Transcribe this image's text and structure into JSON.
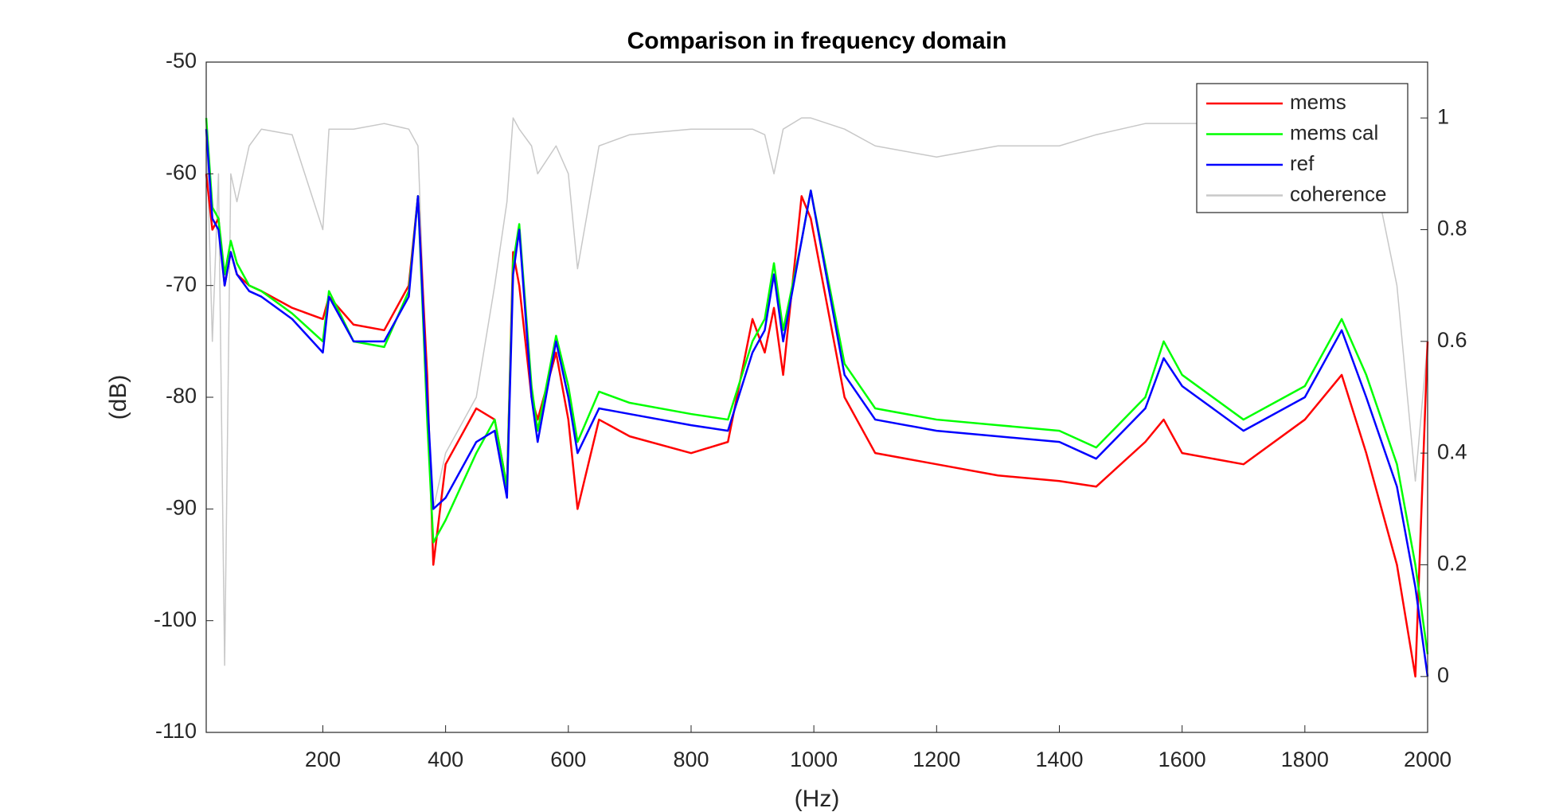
{
  "chart_data": {
    "type": "line",
    "title": "Comparison in frequency domain",
    "x_label": "(Hz)",
    "y_label": "(dB)",
    "x": [
      10,
      20,
      30,
      40,
      50,
      60,
      80,
      100,
      150,
      200,
      210,
      250,
      300,
      340,
      355,
      370,
      380,
      400,
      450,
      480,
      500,
      510,
      520,
      540,
      550,
      580,
      600,
      615,
      650,
      700,
      800,
      860,
      900,
      920,
      935,
      950,
      980,
      995,
      1050,
      1100,
      1200,
      1300,
      1400,
      1460,
      1540,
      1570,
      1600,
      1700,
      1800,
      1860,
      1900,
      1950,
      1980,
      2000
    ],
    "xlim": [
      10,
      2000
    ],
    "xticks": [
      200,
      400,
      600,
      800,
      1000,
      1200,
      1400,
      1600,
      1800,
      2000
    ],
    "ylim": [
      -110,
      -50
    ],
    "yticks": [
      -110,
      -100,
      -90,
      -80,
      -70,
      -60,
      -50
    ],
    "y2lim": [
      -0.1,
      1.1
    ],
    "y2ticks": [
      0,
      0.2,
      0.4,
      0.6,
      0.8,
      1
    ],
    "legend_position": "upper right",
    "series": [
      {
        "name": "mems",
        "color": "#ff0000",
        "values": [
          -60,
          -65,
          -64,
          -70,
          -67,
          -69,
          -70,
          -70.5,
          -72,
          -73,
          -71,
          -73.5,
          -74,
          -70,
          -62,
          -78,
          -95,
          -86,
          -81,
          -82,
          -88,
          -67,
          -70,
          -80,
          -82,
          -76,
          -82,
          -90,
          -82,
          -83.5,
          -85,
          -84,
          -73,
          -76,
          -72,
          -78,
          -62,
          -64,
          -80,
          -85,
          -86,
          -87,
          -87.5,
          -88,
          -84,
          -82,
          -85,
          -86,
          -82,
          -78,
          -85,
          -95,
          -105,
          -75
        ]
      },
      {
        "name": "mems cal",
        "color": "#00ff00",
        "values": [
          -55,
          -63,
          -64,
          -69,
          -66,
          -68,
          -70,
          -70.5,
          -72.5,
          -75,
          -70.5,
          -75,
          -75.5,
          -70.5,
          -62,
          -82,
          -93,
          -91,
          -85,
          -82,
          -88,
          -68,
          -64.5,
          -79,
          -83,
          -74.5,
          -79,
          -84,
          -79.5,
          -80.5,
          -81.5,
          -82,
          -75,
          -73,
          -68,
          -74,
          -66,
          -61.5,
          -77,
          -81,
          -82,
          -82.5,
          -83,
          -84.5,
          -80,
          -75,
          -78,
          -82,
          -79,
          -73,
          -78,
          -86,
          -95,
          -103
        ]
      },
      {
        "name": "ref",
        "color": "#0000ff",
        "values": [
          -56,
          -64,
          -65,
          -70,
          -67,
          -69,
          -70.5,
          -71,
          -73,
          -76,
          -71,
          -75,
          -75,
          -71,
          -62,
          -80,
          -90,
          -89,
          -84,
          -83,
          -89,
          -69,
          -65,
          -80,
          -84,
          -75,
          -80,
          -85,
          -81,
          -81.5,
          -82.5,
          -83,
          -76,
          -74,
          -69,
          -75,
          -66,
          -61.5,
          -78,
          -82,
          -83,
          -83.5,
          -84,
          -85.5,
          -81,
          -76.5,
          -79,
          -83,
          -80,
          -74,
          -80,
          -88,
          -97,
          -105
        ]
      },
      {
        "name": "coherence",
        "color": "#c8c8c8",
        "axis": "y2",
        "values": [
          1,
          0.6,
          0.9,
          0.02,
          0.9,
          0.85,
          0.95,
          0.98,
          0.97,
          0.8,
          0.98,
          0.98,
          0.99,
          0.98,
          0.95,
          0.5,
          0.3,
          0.4,
          0.5,
          0.7,
          0.85,
          1,
          0.98,
          0.95,
          0.9,
          0.95,
          0.9,
          0.73,
          0.95,
          0.97,
          0.98,
          0.98,
          0.98,
          0.97,
          0.9,
          0.98,
          1,
          1,
          0.98,
          0.95,
          0.93,
          0.95,
          0.95,
          0.97,
          0.99,
          0.99,
          0.99,
          0.99,
          0.99,
          0.98,
          0.97,
          0.7,
          0.35,
          0.6
        ]
      }
    ]
  }
}
